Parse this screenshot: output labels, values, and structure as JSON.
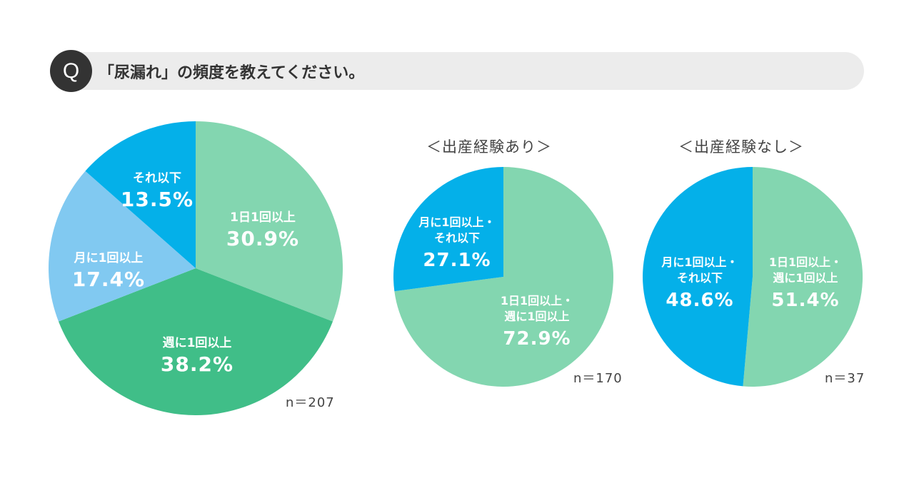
{
  "question": {
    "badge": "Q",
    "text": "「尿漏れ」の頻度を教えてください。"
  },
  "colors": {
    "light_green": "#83d6b0",
    "green": "#40be88",
    "light_blue": "#81c9f1",
    "blue": "#04b0e9",
    "label_text": "#ffffff"
  },
  "chart_data": [
    {
      "type": "pie",
      "title": "",
      "n_label": "n＝207",
      "slices": [
        {
          "label": "1日1回以上",
          "value": 30.9,
          "value_label": "30.9%",
          "color": "#83d6b0"
        },
        {
          "label": "週に1回以上",
          "value": 38.2,
          "value_label": "38.2%",
          "color": "#40be88"
        },
        {
          "label": "月に1回以上",
          "value": 17.4,
          "value_label": "17.4%",
          "color": "#81c9f1"
        },
        {
          "label": "それ以下",
          "value": 13.5,
          "value_label": "13.5%",
          "color": "#04b0e9"
        }
      ]
    },
    {
      "type": "pie",
      "title": "＜出産経験あり＞",
      "n_label": "n＝170",
      "slices": [
        {
          "label": "1日1回以上・\n週に1回以上",
          "value": 72.9,
          "value_label": "72.9%",
          "color": "#83d6b0"
        },
        {
          "label": "月に1回以上・\nそれ以下",
          "value": 27.1,
          "value_label": "27.1%",
          "color": "#04b0e9"
        }
      ]
    },
    {
      "type": "pie",
      "title": "＜出産経験なし＞",
      "n_label": "n＝37",
      "slices": [
        {
          "label": "1日1回以上・\n週に1回以上",
          "value": 51.4,
          "value_label": "51.4%",
          "color": "#83d6b0"
        },
        {
          "label": "月に1回以上・\nそれ以下",
          "value": 48.6,
          "value_label": "48.6%",
          "color": "#04b0e9"
        }
      ]
    }
  ]
}
